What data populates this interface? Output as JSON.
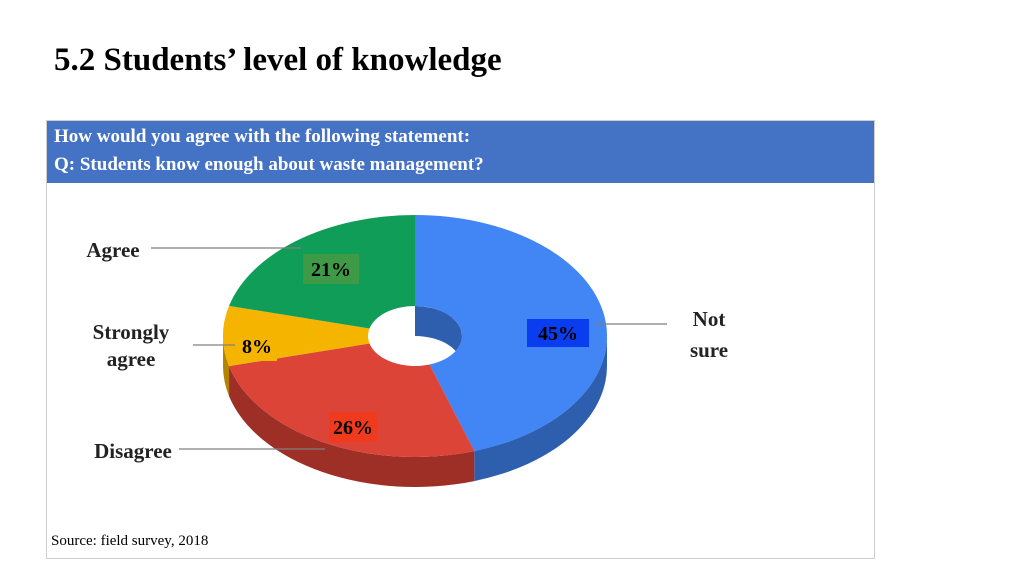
{
  "slide": {
    "title": "5.2 Students’ level of knowledge"
  },
  "question": {
    "line1": "How would you agree with the following statement:",
    "line2": "Q: Students know enough about waste management?"
  },
  "source": "Source: field survey, 2018",
  "chart_data": {
    "type": "pie",
    "style": "3d-donut",
    "slices": [
      {
        "label": "Not sure",
        "label_lines": [
          "Not",
          "sure"
        ],
        "value": 45,
        "pct_label": "45%",
        "color": "#4285f4",
        "side_color": "#2e5fae",
        "pct_bg": "#0b3df0"
      },
      {
        "label": "Disagree",
        "label_lines": [
          "Disagree"
        ],
        "value": 26,
        "pct_label": "26%",
        "color": "#db4437",
        "side_color": "#9e2f26",
        "pct_bg": "#f03a1e"
      },
      {
        "label": "Strongly agree",
        "label_lines": [
          "Strongly",
          "agree"
        ],
        "value": 8,
        "pct_label": "8%",
        "color": "#f4b400",
        "side_color": "#b38400",
        "pct_bg": "#f4b400"
      },
      {
        "label": "Agree",
        "label_lines": [
          "Agree"
        ],
        "value": 21,
        "pct_label": "21%",
        "color": "#0f9d58",
        "side_color": "#0a6b3c",
        "pct_bg": "#3f9a48"
      }
    ]
  }
}
